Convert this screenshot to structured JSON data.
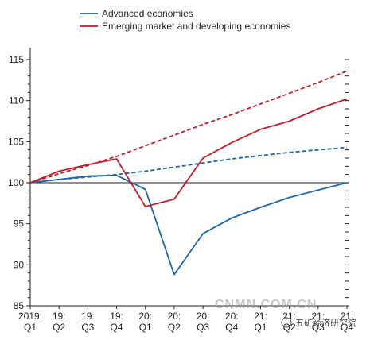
{
  "chart_data": {
    "type": "line",
    "title": "",
    "xlabel": "",
    "ylabel": "",
    "ylim": [
      85,
      117
    ],
    "yticks": [
      85,
      90,
      95,
      100,
      105,
      110,
      115
    ],
    "baseline": 100,
    "x_labels": [
      [
        "2019:",
        "Q1"
      ],
      [
        "19:",
        "Q2"
      ],
      [
        "19:",
        "Q3"
      ],
      [
        "19:",
        "Q4"
      ],
      [
        "20:",
        "Q1"
      ],
      [
        "20:",
        "Q2"
      ],
      [
        "20:",
        "Q3"
      ],
      [
        "20:",
        "Q4"
      ],
      [
        "21:",
        "Q1"
      ],
      [
        "21:",
        "Q2"
      ],
      [
        "21:",
        "Q3"
      ],
      [
        "21:",
        "Q4"
      ]
    ],
    "legend_position": "top-left",
    "series": [
      {
        "name": "Advanced economies",
        "color": "#1f66a8",
        "dash": false,
        "values": [
          100.0,
          100.4,
          100.8,
          100.9,
          99.2,
          88.8,
          93.8,
          95.7,
          97.0,
          98.2,
          99.1,
          100.0
        ]
      },
      {
        "name": "Emerging market and developing economies",
        "color": "#be1e2d",
        "dash": false,
        "values": [
          100.0,
          101.4,
          102.2,
          102.9,
          97.1,
          98.0,
          103.0,
          104.9,
          106.5,
          107.5,
          109.0,
          110.2
        ]
      },
      {
        "name": "",
        "color": "#be1e2d",
        "dash": true,
        "values": [
          100.0,
          101.1,
          102.1,
          103.2,
          104.5,
          105.8,
          107.1,
          108.3,
          109.6,
          110.9,
          112.2,
          113.6
        ]
      },
      {
        "name": "",
        "color": "#1f66a8",
        "dash": true,
        "values": [
          100.0,
          100.4,
          100.7,
          101.0,
          101.4,
          101.9,
          102.4,
          102.9,
          103.3,
          103.7,
          104.0,
          104.3
        ]
      }
    ]
  },
  "watermark": {
    "text": "CNMN.COM.CN",
    "badge": "五矿经济研究院"
  }
}
